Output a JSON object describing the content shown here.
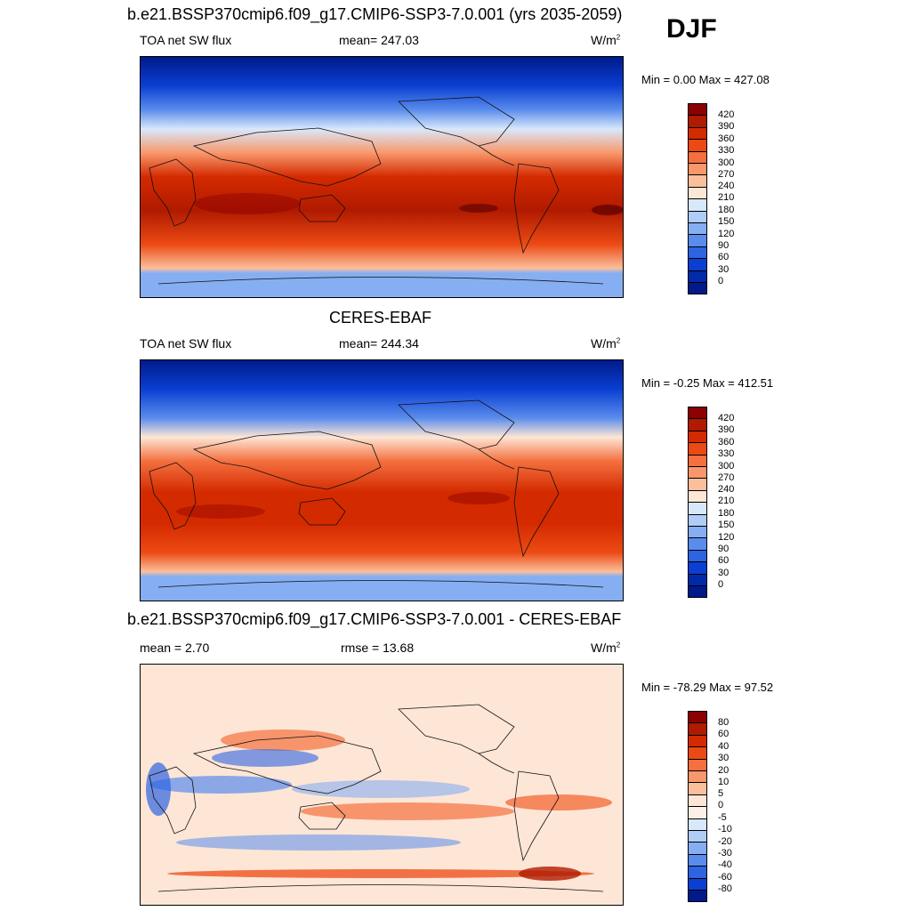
{
  "season": "DJF",
  "panels": [
    {
      "title": "b.e21.BSSP370cmip6.f09_g17.CMIP6-SSP3-7.0.001 (yrs 2035-2059)",
      "left_label": "TOA net SW flux",
      "center_label": "mean= 247.03",
      "units": "W/m",
      "units_sup": "2",
      "minmax": "Min =   0.00 Max = 427.08",
      "colorbar_labels": [
        "420",
        "390",
        "360",
        "330",
        "300",
        "270",
        "240",
        "210",
        "180",
        "150",
        "120",
        "90",
        "60",
        "30",
        "0"
      ]
    },
    {
      "title": "CERES-EBAF",
      "left_label": "TOA net SW flux",
      "center_label": "mean= 244.34",
      "units": "W/m",
      "units_sup": "2",
      "minmax": "Min =  -0.25 Max = 412.51",
      "colorbar_labels": [
        "420",
        "390",
        "360",
        "330",
        "300",
        "270",
        "240",
        "210",
        "180",
        "150",
        "120",
        "90",
        "60",
        "30",
        "0"
      ]
    },
    {
      "title": "b.e21.BSSP370cmip6.f09_g17.CMIP6-SSP3-7.0.001 - CERES-EBAF",
      "left_label": "mean =   2.70",
      "center_label": "rmse =  13.68",
      "units": "W/m",
      "units_sup": "2",
      "minmax": "Min = -78.29 Max =  97.52",
      "colorbar_labels": [
        "80",
        "60",
        "40",
        "30",
        "20",
        "10",
        "5",
        "0",
        "-5",
        "-10",
        "-20",
        "-30",
        "-40",
        "-60",
        "-80"
      ]
    }
  ],
  "colors": {
    "abs_scale": [
      "#8b0000",
      "#b01a00",
      "#d42a00",
      "#ec4a14",
      "#f4703f",
      "#f8976b",
      "#fbbf9c",
      "#fde6d6",
      "#d8e8fb",
      "#b0cdf7",
      "#86aef2",
      "#5a8cec",
      "#2e64e2",
      "#0a3fd2",
      "#002aa8",
      "#001a8a"
    ],
    "diff_scale": [
      "#8b0000",
      "#b01a00",
      "#d42a00",
      "#ec4a14",
      "#f4703f",
      "#f8976b",
      "#fbbf9c",
      "#fde6d6",
      "#fdf0e6",
      "#d8e8fb",
      "#b0cdf7",
      "#86aef2",
      "#5a8cec",
      "#2e64e2",
      "#0a3fd2",
      "#001a8a"
    ]
  }
}
